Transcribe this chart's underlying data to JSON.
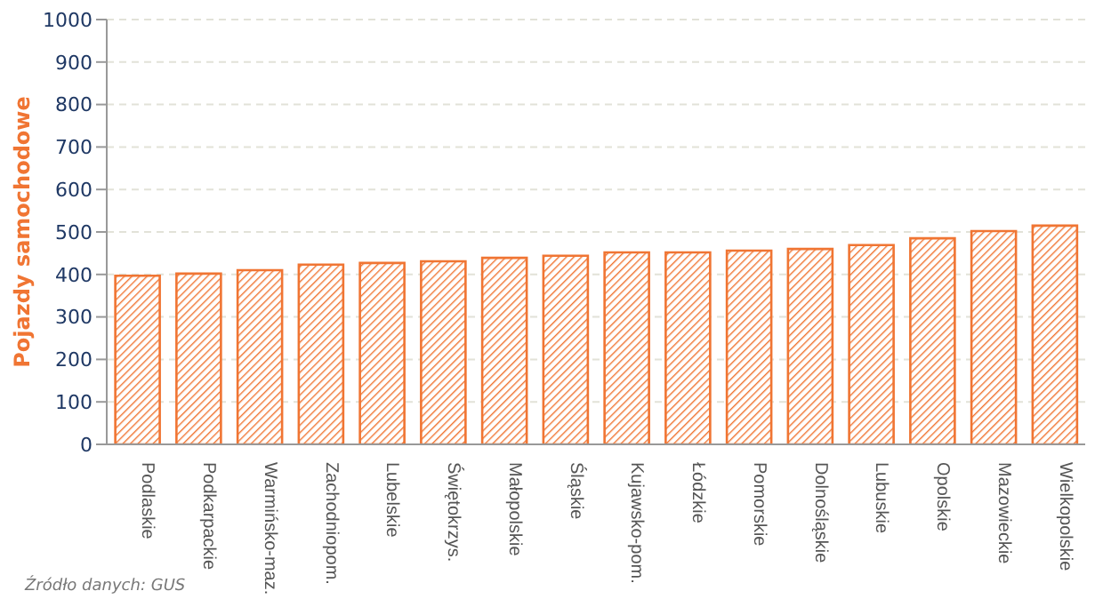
{
  "chart_data": {
    "type": "bar",
    "ylabel": "Pojazdy samochodowe",
    "categories": [
      "Podlaskie",
      "Podkarpackie",
      "Warmińsko-maz.",
      "Zachodniopom.",
      "Lubelskie",
      "Świętokrzys.",
      "Małopolskie",
      "Śląskie",
      "Kujawsko-pom.",
      "Łódzkie",
      "Pomorskie",
      "Dolnośląskie",
      "Lubuskie",
      "Opolskie",
      "Mazowieckie",
      "Wielkopolskie"
    ],
    "values": [
      397,
      402,
      410,
      423,
      427,
      431,
      439,
      444,
      452,
      452,
      456,
      460,
      469,
      485,
      502,
      515
    ],
    "color": "#f07533",
    "ylim": [
      0,
      1000
    ],
    "yticks": [
      0,
      100,
      200,
      300,
      400,
      500,
      600,
      700,
      800,
      900,
      1000
    ],
    "grid": "y",
    "annotations": [
      "Źródło danych: GUS"
    ]
  }
}
